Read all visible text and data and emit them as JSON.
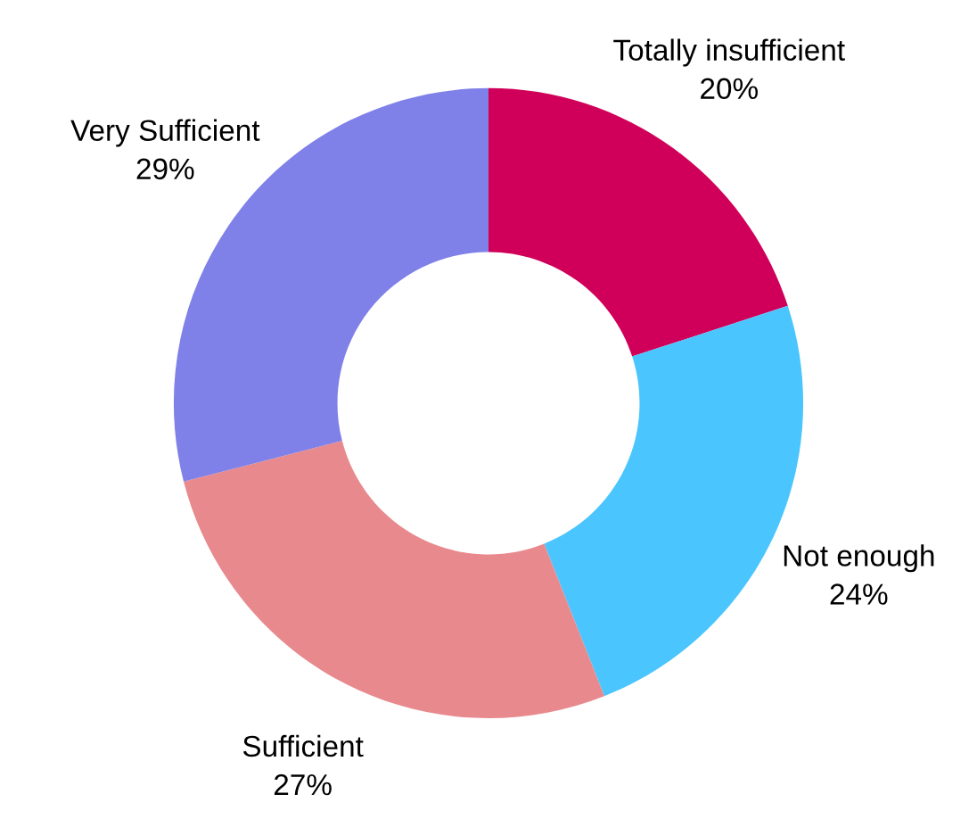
{
  "chart_data": {
    "type": "donut",
    "categories": [
      "Totally insufficient",
      "Not enough",
      "Sufficient",
      "Very Sufficient"
    ],
    "values": [
      20,
      24,
      27,
      29
    ],
    "value_labels": [
      "20%",
      "24%",
      "27%",
      "29%"
    ],
    "colors": [
      "#d0005a",
      "#4bc5fd",
      "#e8898d",
      "#7f80e8"
    ],
    "legend": false
  }
}
